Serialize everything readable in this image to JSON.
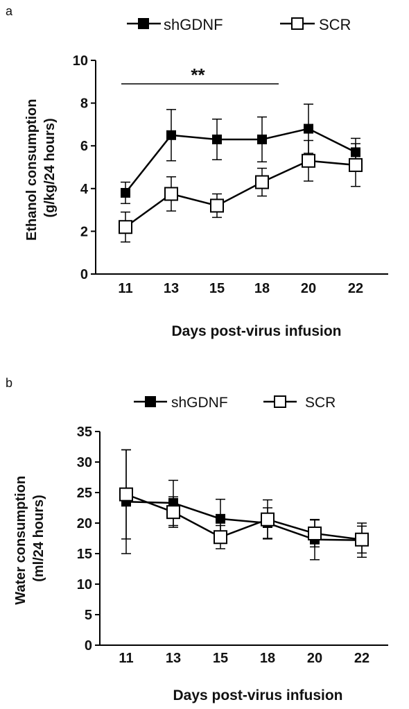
{
  "chart_data": [
    {
      "type": "line",
      "panel_label": "a",
      "x": [
        11,
        13,
        15,
        18,
        20,
        22
      ],
      "xlabel": "Days post-virus infusion",
      "ylabel": "Ethanol consumption\n(g/kg/24 hours)",
      "ylim": [
        0,
        10
      ],
      "yticks": [
        0,
        2,
        4,
        6,
        8,
        10
      ],
      "grid": false,
      "legend": "top",
      "series": [
        {
          "name": "shGDNF",
          "marker": "filled-square",
          "color": "#000000",
          "values": [
            3.8,
            6.5,
            6.3,
            6.3,
            6.8,
            5.7
          ],
          "errors": [
            0.5,
            1.2,
            0.95,
            1.05,
            1.15,
            0.65
          ]
        },
        {
          "name": "SCR",
          "marker": "open-square",
          "color": "#000000",
          "values": [
            2.2,
            3.75,
            3.2,
            4.3,
            5.3,
            5.1
          ],
          "errors": [
            0.7,
            0.8,
            0.55,
            0.65,
            0.95,
            1.0
          ]
        }
      ],
      "annotations": [
        {
          "text": "**",
          "x_start": 11,
          "x_end": 18,
          "y": 8.9
        }
      ]
    },
    {
      "type": "line",
      "panel_label": "b",
      "x": [
        11,
        13,
        15,
        18,
        20,
        22
      ],
      "xlabel": "Days post-virus infusion",
      "ylabel": "Water consumption\n(ml/24 hours)",
      "ylim": [
        0,
        35
      ],
      "yticks": [
        0,
        5,
        10,
        15,
        20,
        25,
        30,
        35
      ],
      "grid": false,
      "legend": "top",
      "series": [
        {
          "name": "shGDNF",
          "marker": "filled-square",
          "color": "#000000",
          "values": [
            23.5,
            23.3,
            20.7,
            20.0,
            17.3,
            17.2
          ],
          "errors": [
            8.5,
            3.7,
            3.2,
            2.5,
            3.3,
            2.8
          ]
        },
        {
          "name": "SCR",
          "marker": "open-square",
          "color": "#000000",
          "values": [
            24.7,
            21.8,
            17.7,
            20.6,
            18.3,
            17.3
          ],
          "errors": [
            7.3,
            2.5,
            1.9,
            3.2,
            2.2,
            2.2
          ]
        }
      ],
      "annotations": []
    }
  ]
}
